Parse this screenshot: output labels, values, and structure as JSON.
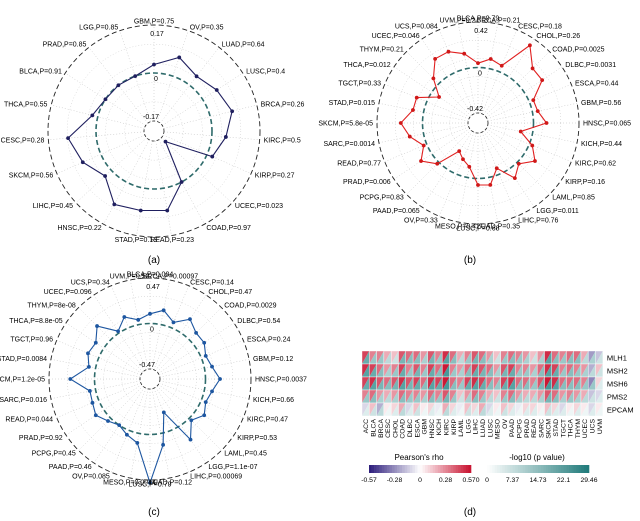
{
  "panels": {
    "a": "(a)",
    "b": "(b)",
    "c": "(c)",
    "d": "(d)"
  },
  "chart_data": [
    {
      "type": "radar",
      "panel": "(a)",
      "line_color": "#1f1f5f",
      "point_color": "#1f1f5f",
      "ring_labels": [
        "0.17",
        "0",
        "-0.17"
      ],
      "ylim": [
        -0.17,
        0.17
      ],
      "categories": [
        "GBM,P=0.75",
        "OV,P=0.35",
        "LUAD,P=0.64",
        "LUSC,P=0.4",
        "BRCA,P=0.26",
        "KIRC,P=0.5",
        "KIRP,P=0.27",
        "UCEC,P=0.023",
        "COAD,P=0.97",
        "READ,P=0.23",
        "STAD,P=0.13",
        "HNSC,P=0.22",
        "LIHC,P=0.45",
        "SKCM,P=0.56",
        "CESC,P=0.28",
        "THCA,P=0.55",
        "BLCA,P=0.91",
        "PRAD,P=0.85",
        "LGG,P=0.85"
      ],
      "values": [
        0.03,
        0.07,
        0.04,
        0.06,
        0.08,
        0.05,
        0.02,
        -0.15,
        0.0,
        0.08,
        0.08,
        0.09,
        0.03,
        0.07,
        0.1,
        0.02,
        0.0,
        0.0,
        0.0
      ]
    },
    {
      "type": "radar",
      "panel": "(b)",
      "line_color": "#e02020",
      "point_color": "#d01818",
      "ring_labels": [
        "0.42",
        "0",
        "-0.42"
      ],
      "ylim": [
        -0.42,
        0.42
      ],
      "categories": [
        "BLCA,P=0.79",
        "BRCA,P=0.21",
        "CESC,P=0.18",
        "CHOL,P=0.26",
        "COAD,P=0.0025",
        "DLBC,P=0.0031",
        "ESCA,P=0.44",
        "GBM,P=0.56",
        "HNSC,P=0.065",
        "KICH,P=0.44",
        "KIRC,P=0.62",
        "KIRP,P=0.16",
        "LAML,P=0.85",
        "LGG,P=0.011",
        "LIHC,P=0.76",
        "LUAD,P=0.35",
        "LUSC,P=0.68",
        "MESO,P=0.42",
        "OV,P=0.33",
        "PAAD,P=0.065",
        "PCPG,P=0.83",
        "PRAD,P=0.006",
        "READ,P=0.77",
        "SARC,P=0.0014",
        "SKCM,P=5.8e-05",
        "STAD,P=0.015",
        "TGCT,P=0.33",
        "THCA,P=0.012",
        "THYM,P=0.21",
        "UCEC,P=0.046",
        "UCS,P=0.084",
        "UVM,P=0.2"
      ],
      "values": [
        0.04,
        0.09,
        0.06,
        0.35,
        0.2,
        0.2,
        0.04,
        0.05,
        0.12,
        -0.11,
        0.03,
        0.12,
        0.02,
        0.1,
        -0.06,
        0.07,
        0.06,
        -0.1,
        -0.15,
        -0.2,
        0.02,
        0.12,
        0.03,
        0.13,
        0.2,
        0.1,
        0.1,
        -0.08,
        0.07,
        0.2,
        0.2,
        0.14
      ]
    },
    {
      "type": "radar",
      "panel": "(c)",
      "line_color": "#1d56a0",
      "point_color": "#1d56a0",
      "ring_labels": [
        "0.47",
        "0",
        "-0.47"
      ],
      "ylim": [
        -0.47,
        0.47
      ],
      "categories": [
        "BLCA,P=0.004",
        "BRCA,P=0.00097",
        "CESC,P=0.14",
        "CHOL,P=0.47",
        "COAD,P=0.0029",
        "DLBC,P=0.54",
        "ESCA,P=0.24",
        "GBM,P=0.12",
        "HNSC,P=0.0037",
        "KICH,P=0.66",
        "KIRC,P=0.47",
        "KIRP,P=0.53",
        "LAML,P=0.45",
        "LGG,P=1.1e-07",
        "LIHC,P=0.00069",
        "LUAD,P=0.12",
        "LUSC,P=0.79",
        "MESO,P=0.0044",
        "OV,P=0.085",
        "PAAD,P=0.46",
        "PCPG,P=0.45",
        "PRAD,P=0.92",
        "READ,P=0.044",
        "SARC,P=0.016",
        "SKCM,P=1.2e-05",
        "STAD,P=0.0084",
        "TGCT,P=0.96",
        "THCA,P=8.8e-05",
        "THYM,P=8e-08",
        "UCEC,P=0.096",
        "UCS,P=0.34",
        "UVM,P=0.52"
      ],
      "values": [
        0.1,
        0.15,
        0.06,
        0.17,
        0.1,
        0.1,
        0.05,
        0.08,
        0.15,
        0.08,
        0.05,
        0.1,
        0.03,
        0.18,
        -0.2,
        0.12,
        0.5,
        0.1,
        0.05,
        0.0,
        0.04,
        0.1,
        0.07,
        0.06,
        0.25,
        0.07,
        0.12,
        0.1,
        0.2,
        0.02,
        0.12,
        0.05
      ]
    },
    {
      "type": "heatmap",
      "panel": "(d)",
      "rows": [
        "MLH1",
        "MSH2",
        "MSH6",
        "PMS2",
        "EPCAM"
      ],
      "columns": [
        "ACC",
        "BLCA",
        "BRCA",
        "CESC",
        "CHOL",
        "COAD",
        "DLBC",
        "ESCA",
        "GBM",
        "HNSC",
        "KICH",
        "KIRC",
        "KIRP",
        "LAML",
        "LGG",
        "LIHC",
        "LUAD",
        "LUSC",
        "MESO",
        "OV",
        "PAAD",
        "PCPG",
        "PRAD",
        "READ",
        "SARC",
        "SKCM",
        "STAD",
        "TGCT",
        "THCA",
        "THYM",
        "UCEC",
        "UCS",
        "UVM"
      ],
      "rho": [
        [
          0.45,
          0.3,
          0.3,
          0.2,
          0.15,
          0.4,
          0.35,
          0.35,
          0.25,
          0.4,
          0.3,
          0.5,
          0.35,
          0.2,
          0.3,
          0.4,
          0.35,
          0.25,
          0.15,
          0.3,
          0.35,
          0.3,
          0.25,
          0.15,
          0.25,
          0.5,
          0.35,
          0.3,
          0.35,
          0.35,
          0.2,
          -0.25,
          -0.15
        ],
        [
          0.5,
          0.45,
          0.35,
          0.25,
          0.3,
          0.45,
          0.3,
          0.4,
          0.3,
          0.45,
          0.35,
          0.55,
          0.3,
          0.25,
          0.35,
          0.45,
          0.4,
          0.35,
          0.25,
          0.4,
          0.45,
          0.3,
          0.3,
          0.25,
          0.35,
          0.5,
          0.45,
          0.3,
          0.35,
          0.3,
          0.25,
          -0.2,
          0.15
        ],
        [
          0.45,
          0.5,
          0.4,
          0.35,
          0.4,
          0.5,
          0.4,
          0.45,
          0.35,
          0.5,
          0.45,
          0.55,
          0.35,
          0.3,
          0.45,
          0.5,
          0.45,
          0.35,
          0.3,
          0.45,
          0.5,
          0.35,
          0.35,
          0.3,
          0.4,
          0.55,
          0.5,
          0.35,
          0.35,
          0.35,
          0.3,
          -0.3,
          0.1
        ],
        [
          0.3,
          0.35,
          0.25,
          0.2,
          0.25,
          0.35,
          0.3,
          0.3,
          0.25,
          0.35,
          0.3,
          0.4,
          0.3,
          0.15,
          0.25,
          0.35,
          0.3,
          0.2,
          0.15,
          0.3,
          0.35,
          0.25,
          0.2,
          0.2,
          0.25,
          0.4,
          0.35,
          0.25,
          0.3,
          0.25,
          0.2,
          -0.15,
          -0.1
        ],
        [
          -0.1,
          0.15,
          -0.2,
          0.05,
          0.1,
          0.2,
          -0.1,
          0.15,
          0.05,
          0.1,
          -0.05,
          0.2,
          0.1,
          -0.05,
          0.15,
          0.1,
          0.2,
          -0.1,
          0.05,
          0.15,
          0.1,
          -0.05,
          0.1,
          0.1,
          0.05,
          0.15,
          0.1,
          -0.1,
          0.05,
          0.1,
          0.05,
          -0.1,
          0.05
        ]
      ],
      "colorbar_rho": {
        "label": "Pearson's rho",
        "ticks": [
          "-0.57",
          "-0.28",
          "0",
          "0.28",
          "0.570"
        ]
      },
      "colorbar_p": {
        "label": "-log10 (p value)",
        "ticks": [
          "0",
          "7.37",
          "14.73",
          "22.1",
          "29.46"
        ]
      }
    }
  ]
}
